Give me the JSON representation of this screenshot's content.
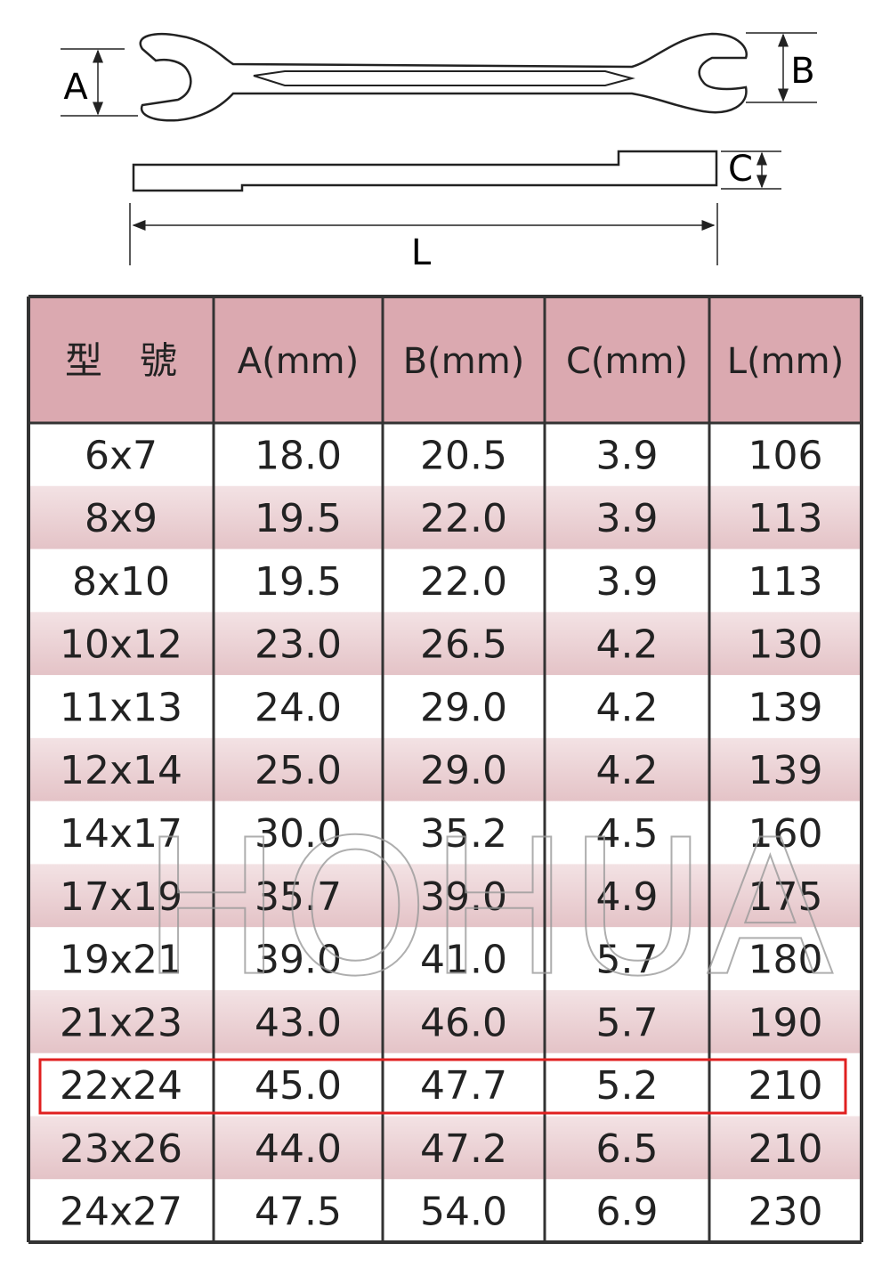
{
  "diagram": {
    "labels": {
      "a": "A",
      "b": "B",
      "c": "C",
      "l": "L"
    }
  },
  "table": {
    "header": [
      "型　號",
      "A(mm)",
      "B(mm)",
      "C(mm)",
      "L(mm)"
    ],
    "rows": [
      [
        "6x7",
        "18.0",
        "20.5",
        "3.9",
        "106"
      ],
      [
        "8x9",
        "19.5",
        "22.0",
        "3.9",
        "113"
      ],
      [
        "8x10",
        "19.5",
        "22.0",
        "3.9",
        "113"
      ],
      [
        "10x12",
        "23.0",
        "26.5",
        "4.2",
        "130"
      ],
      [
        "11x13",
        "24.0",
        "29.0",
        "4.2",
        "139"
      ],
      [
        "12x14",
        "25.0",
        "29.0",
        "4.2",
        "139"
      ],
      [
        "14x17",
        "30.0",
        "35.2",
        "4.5",
        "160"
      ],
      [
        "17x19",
        "35.7",
        "39.0",
        "4.9",
        "175"
      ],
      [
        "19x21",
        "39.0",
        "41.0",
        "5.7",
        "180"
      ],
      [
        "21x23",
        "43.0",
        "46.0",
        "5.7",
        "190"
      ],
      [
        "22x24",
        "45.0",
        "47.7",
        "5.2",
        "210"
      ],
      [
        "23x26",
        "44.0",
        "47.2",
        "6.5",
        "210"
      ],
      [
        "24x27",
        "47.5",
        "54.0",
        "6.9",
        "230"
      ]
    ]
  },
  "watermark": "HOHUA"
}
